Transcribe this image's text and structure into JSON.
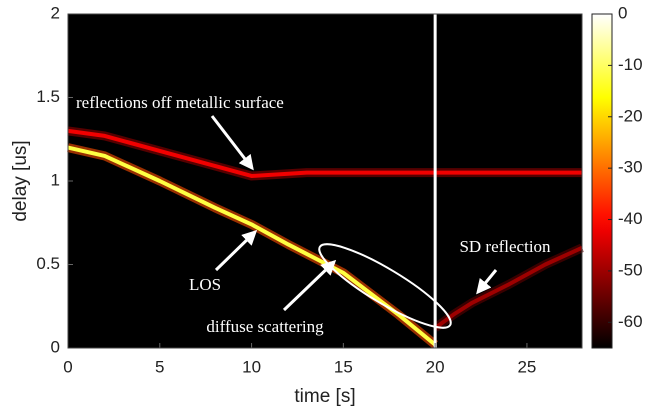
{
  "chart_data": {
    "type": "heatmap",
    "xlabel": "time [s]",
    "ylabel": "delay [us]",
    "xlim": [
      0,
      28
    ],
    "ylim": [
      0,
      2
    ],
    "xticks": [
      0,
      5,
      10,
      15,
      20,
      25
    ],
    "yticks": [
      0,
      0.5,
      1,
      1.5,
      2
    ],
    "colormap": "hot",
    "clim": [
      -65,
      0
    ],
    "cticks": [
      0,
      -10,
      -20,
      -30,
      -40,
      -50,
      -60
    ],
    "traces": [
      {
        "x": [
          0,
          2,
          5,
          8,
          10,
          13,
          16,
          20,
          24,
          28
        ],
        "y": [
          1.3,
          1.27,
          1.18,
          1.09,
          1.03,
          1.05,
          1.05,
          1.05,
          1.05,
          1.05
        ],
        "power": -42
      },
      {
        "x": [
          0,
          2,
          5,
          8,
          10,
          12,
          15,
          18,
          20
        ],
        "y": [
          1.2,
          1.15,
          1.0,
          0.84,
          0.74,
          0.62,
          0.45,
          0.2,
          0.02
        ],
        "power": -12
      },
      {
        "x": [
          20,
          21,
          22,
          24,
          26,
          28
        ],
        "y": [
          0.12,
          0.2,
          0.27,
          0.38,
          0.5,
          0.6
        ],
        "power": -50
      }
    ],
    "vline": {
      "x": 20,
      "color": "#ffffff"
    },
    "annotations": [
      "reflections off metallic surface",
      "LOS",
      "diffuse scattering",
      "SD reflection"
    ]
  }
}
